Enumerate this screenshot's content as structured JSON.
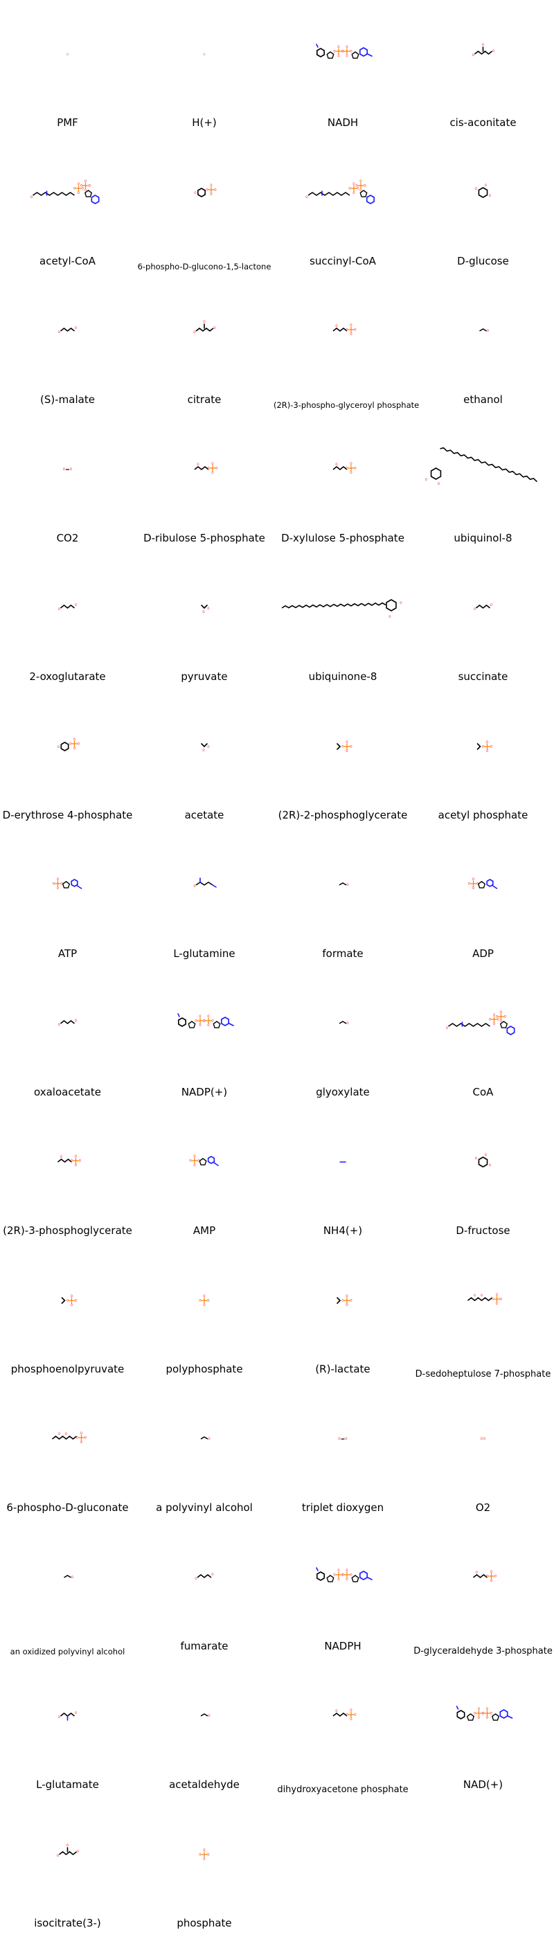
{
  "palette": {
    "carbon": "#000000",
    "oxygen": "#ff0000",
    "nitrogen": "#1a1aff",
    "phosphorus": "#ff7f00",
    "sulfur": "#c8c800",
    "background": "#ffffff"
  },
  "compounds": [
    {
      "name": "PMF",
      "kind": "ion"
    },
    {
      "name": "H(+)",
      "kind": "ion"
    },
    {
      "name": "NADH",
      "kind": "nucleotide-large"
    },
    {
      "name": "cis-aconitate",
      "kind": "acid"
    },
    {
      "name": "acetyl-CoA",
      "kind": "coa"
    },
    {
      "name": "6-phospho-D-glucono-1,5-lactone",
      "kind": "sugar-phosphate"
    },
    {
      "name": "succinyl-CoA",
      "kind": "coa"
    },
    {
      "name": "D-glucose",
      "kind": "sugar"
    },
    {
      "name": "(S)-malate",
      "kind": "acid-small"
    },
    {
      "name": "citrate",
      "kind": "acid"
    },
    {
      "name": "(2R)-3-phospho-glyceroyl phosphate",
      "kind": "phosphate-chain"
    },
    {
      "name": "ethanol",
      "kind": "tiny"
    },
    {
      "name": "CO2",
      "kind": "gas"
    },
    {
      "name": "D-ribulose 5-phosphate",
      "kind": "phosphate-chain"
    },
    {
      "name": "D-xylulose 5-phosphate",
      "kind": "phosphate-chain"
    },
    {
      "name": "ubiquinol-8",
      "kind": "quinone-diag"
    },
    {
      "name": "2-oxoglutarate",
      "kind": "acid-small"
    },
    {
      "name": "pyruvate",
      "kind": "tiny-acid"
    },
    {
      "name": "ubiquinone-8",
      "kind": "quinone-flat"
    },
    {
      "name": "succinate",
      "kind": "acid-small"
    },
    {
      "name": "D-erythrose 4-phosphate",
      "kind": "sugar-phosphate"
    },
    {
      "name": "acetate",
      "kind": "tiny-acid"
    },
    {
      "name": "(2R)-2-phosphoglycerate",
      "kind": "phospho-small"
    },
    {
      "name": "acetyl phosphate",
      "kind": "phospho-small"
    },
    {
      "name": "ATP",
      "kind": "nucleotide"
    },
    {
      "name": "L-glutamine",
      "kind": "amino"
    },
    {
      "name": "formate",
      "kind": "tiny"
    },
    {
      "name": "ADP",
      "kind": "nucleotide"
    },
    {
      "name": "oxaloacetate",
      "kind": "acid-small"
    },
    {
      "name": "NADP(+)",
      "kind": "nucleotide-large"
    },
    {
      "name": "glyoxylate",
      "kind": "tiny"
    },
    {
      "name": "CoA",
      "kind": "coa"
    },
    {
      "name": "(2R)-3-phosphoglycerate",
      "kind": "phosphate-chain"
    },
    {
      "name": "AMP",
      "kind": "nucleotide"
    },
    {
      "name": "NH4(+)",
      "kind": "ammonium"
    },
    {
      "name": "D-fructose",
      "kind": "sugar"
    },
    {
      "name": "phosphoenolpyruvate",
      "kind": "phospho-small"
    },
    {
      "name": "polyphosphate",
      "kind": "phosphate"
    },
    {
      "name": "(R)-lactate",
      "kind": "phospho-small"
    },
    {
      "name": "D-sedoheptulose 7-phosphate",
      "kind": "phosphate-chain-long"
    },
    {
      "name": "6-phospho-D-gluconate",
      "kind": "phosphate-chain-long"
    },
    {
      "name": "a polyvinyl alcohol",
      "kind": "tiny"
    },
    {
      "name": "triplet dioxygen",
      "kind": "gas"
    },
    {
      "name": "O2",
      "kind": "gas-single"
    },
    {
      "name": "an oxidized polyvinyl alcohol",
      "kind": "tiny"
    },
    {
      "name": "fumarate",
      "kind": "acid-small"
    },
    {
      "name": "NADPH",
      "kind": "nucleotide-large"
    },
    {
      "name": "D-glyceraldehyde 3-phosphate",
      "kind": "phosphate-chain"
    },
    {
      "name": "L-glutamate",
      "kind": "amino-small"
    },
    {
      "name": "acetaldehyde",
      "kind": "tiny"
    },
    {
      "name": "dihydroxyacetone phosphate",
      "kind": "phosphate-chain"
    },
    {
      "name": "NAD(+)",
      "kind": "nucleotide-large"
    },
    {
      "name": "isocitrate(3-)",
      "kind": "acid"
    },
    {
      "name": "phosphate",
      "kind": "phosphate"
    }
  ]
}
